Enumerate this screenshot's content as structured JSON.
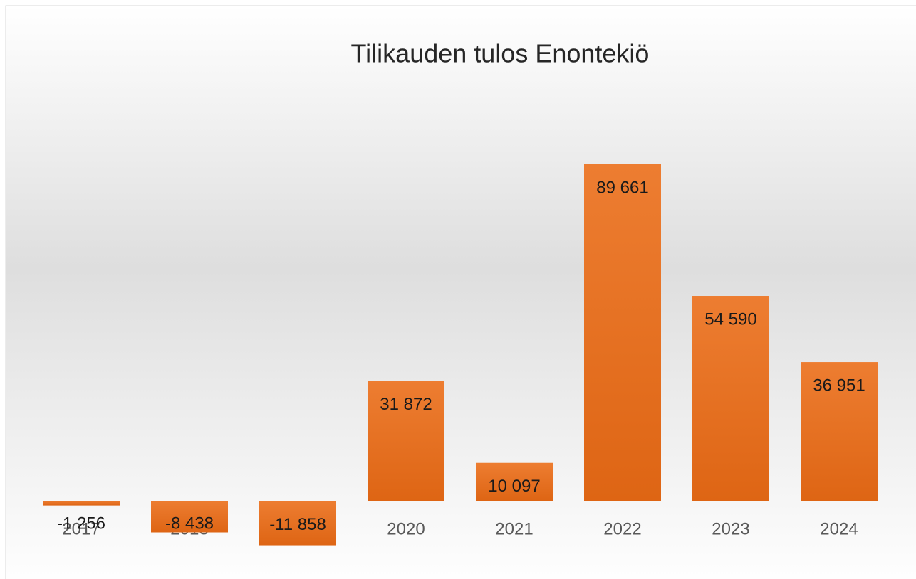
{
  "chart_data": {
    "type": "bar",
    "title": "Tilikauden tulos Enontekiö",
    "categories": [
      "2017",
      "2018",
      "2019",
      "2020",
      "2021",
      "2022",
      "2023",
      "2024"
    ],
    "values": [
      -1256,
      -8438,
      -11858,
      31872,
      10097,
      89661,
      54590,
      36951
    ],
    "value_labels": [
      "-1 256",
      "-8 438",
      "-11 858",
      "31 872",
      "10 097",
      "89 661",
      "54 590",
      "36 951"
    ],
    "color": "#ed7d31"
  }
}
